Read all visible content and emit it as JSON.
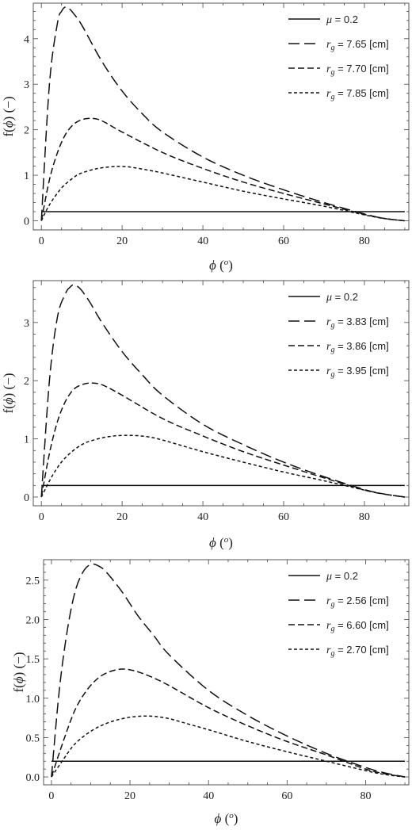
{
  "chart_data": [
    {
      "type": "line",
      "xlabel": {
        "symbol": "ϕ",
        "unit": "o"
      },
      "ylabel": {
        "prefix": "f(",
        "symbol": "ϕ",
        "suffix": ") (−)"
      },
      "xlim": [
        -2,
        91
      ],
      "ylim": [
        -0.2,
        4.78
      ],
      "x_ticks": [
        0,
        20,
        40,
        60,
        80
      ],
      "y_ticks": [
        0,
        1,
        2,
        3,
        4
      ],
      "y_tick_labels": [
        "0",
        "1",
        "2",
        "3",
        "4"
      ],
      "legend_position": "top-right",
      "series": [
        {
          "name": "μ = 0.2",
          "legend_symbol": "μ",
          "legend_rest": " = 0.2",
          "style": "solid",
          "x": [
            0,
            90
          ],
          "y": [
            0.2,
            0.2
          ]
        },
        {
          "name": "r_g = 7.65 [cm]",
          "legend_symbol": "r",
          "legend_sub": "g",
          "legend_rest": " = 7.65 [cm]",
          "style": "long-dash",
          "x": [
            0,
            2,
            4,
            5,
            6,
            7,
            8,
            10,
            15,
            20,
            25,
            30,
            40,
            50,
            60,
            70,
            80,
            85,
            90
          ],
          "y": [
            0,
            3.0,
            4.35,
            4.6,
            4.7,
            4.65,
            4.55,
            4.3,
            3.5,
            2.85,
            2.35,
            1.95,
            1.4,
            1.0,
            0.68,
            0.4,
            0.15,
            0.05,
            0
          ]
        },
        {
          "name": "r_g = 7.70 [cm]",
          "legend_symbol": "r",
          "legend_sub": "g",
          "legend_rest": " = 7.70 [cm]",
          "style": "dash",
          "x": [
            0,
            2,
            4,
            6,
            8,
            10,
            12,
            14,
            16,
            20,
            30,
            40,
            50,
            60,
            70,
            80,
            85,
            90
          ],
          "y": [
            0,
            0.9,
            1.5,
            1.9,
            2.12,
            2.22,
            2.25,
            2.23,
            2.15,
            1.95,
            1.5,
            1.15,
            0.85,
            0.6,
            0.37,
            0.14,
            0.05,
            0
          ]
        },
        {
          "name": "r_g = 7.85 [cm]",
          "legend_symbol": "r",
          "legend_sub": "g",
          "legend_rest": " = 7.85 [cm]",
          "style": "short-dash",
          "x": [
            0,
            2,
            5,
            8,
            10,
            14,
            18,
            20,
            22,
            26,
            30,
            40,
            50,
            60,
            70,
            80,
            85,
            90
          ],
          "y": [
            0,
            0.35,
            0.72,
            0.95,
            1.05,
            1.15,
            1.19,
            1.19,
            1.18,
            1.12,
            1.05,
            0.85,
            0.65,
            0.48,
            0.32,
            0.13,
            0.05,
            0
          ]
        }
      ]
    },
    {
      "type": "line",
      "xlabel": {
        "symbol": "ϕ",
        "unit": "o"
      },
      "ylabel": {
        "prefix": "f(",
        "symbol": "ϕ",
        "suffix": ") (−)"
      },
      "xlim": [
        -2,
        91
      ],
      "ylim": [
        -0.15,
        3.72
      ],
      "x_ticks": [
        0,
        20,
        40,
        60,
        80
      ],
      "y_ticks": [
        0,
        1,
        2,
        3
      ],
      "y_tick_labels": [
        "0",
        "1",
        "2",
        "3"
      ],
      "legend_position": "top-right",
      "series": [
        {
          "name": "μ = 0.2",
          "legend_symbol": "μ",
          "legend_rest": " = 0.2",
          "style": "solid",
          "x": [
            0,
            90
          ],
          "y": [
            0.2,
            0.2
          ]
        },
        {
          "name": "r_g = 3.83 [cm]",
          "legend_symbol": "r",
          "legend_sub": "g",
          "legend_rest": " = 3.83 [cm]",
          "style": "long-dash",
          "x": [
            0,
            2,
            4,
            6,
            7,
            8,
            9,
            10,
            12,
            15,
            20,
            25,
            30,
            40,
            50,
            60,
            70,
            80,
            85,
            90
          ],
          "y": [
            0,
            2.0,
            3.1,
            3.5,
            3.6,
            3.65,
            3.62,
            3.55,
            3.35,
            3.0,
            2.5,
            2.1,
            1.75,
            1.25,
            0.9,
            0.6,
            0.35,
            0.13,
            0.05,
            0
          ]
        },
        {
          "name": "r_g = 3.86 [cm]",
          "legend_symbol": "r",
          "legend_sub": "g",
          "legend_rest": " = 3.86 [cm]",
          "style": "dash",
          "x": [
            0,
            2,
            4,
            6,
            8,
            10,
            12,
            14,
            16,
            20,
            30,
            40,
            50,
            60,
            70,
            80,
            85,
            90
          ],
          "y": [
            0,
            0.75,
            1.3,
            1.65,
            1.85,
            1.93,
            1.96,
            1.95,
            1.9,
            1.75,
            1.35,
            1.05,
            0.78,
            0.55,
            0.33,
            0.12,
            0.05,
            0
          ]
        },
        {
          "name": "r_g = 3.95 [cm]",
          "legend_symbol": "r",
          "legend_sub": "g",
          "legend_rest": " = 3.95 [cm]",
          "style": "short-dash",
          "x": [
            0,
            3,
            6,
            10,
            14,
            18,
            22,
            26,
            30,
            40,
            50,
            60,
            70,
            80,
            85,
            90
          ],
          "y": [
            0,
            0.4,
            0.68,
            0.9,
            1.0,
            1.05,
            1.06,
            1.04,
            0.98,
            0.78,
            0.6,
            0.43,
            0.28,
            0.12,
            0.05,
            0
          ]
        }
      ]
    },
    {
      "type": "line",
      "xlabel": {
        "symbol": "ϕ",
        "unit": "o"
      },
      "ylabel": {
        "prefix": "f(",
        "symbol": "ϕ",
        "suffix": ") (−)"
      },
      "xlim": [
        -2,
        91
      ],
      "ylim": [
        -0.1,
        2.76
      ],
      "x_ticks": [
        0,
        20,
        40,
        60,
        80
      ],
      "y_ticks": [
        0,
        0.5,
        1,
        1.5,
        2,
        2.5
      ],
      "y_tick_labels": [
        "0.0",
        "0.5",
        "1.0",
        "1.5",
        "2.0",
        "2.5"
      ],
      "legend_position": "top-right",
      "series": [
        {
          "name": "μ = 0.2",
          "legend_symbol": "μ",
          "legend_rest": " = 0.2",
          "style": "solid",
          "x": [
            0,
            90
          ],
          "y": [
            0.2,
            0.2
          ]
        },
        {
          "name": "r_g = 2.56 [cm]",
          "legend_symbol": "r",
          "legend_sub": "g",
          "legend_rest": " = 2.56 [cm]",
          "style": "long-dash",
          "x": [
            0,
            2,
            4,
            6,
            8,
            10,
            12,
            14,
            18,
            22,
            26,
            30,
            40,
            50,
            60,
            70,
            80,
            85,
            90
          ],
          "y": [
            0,
            1.1,
            1.85,
            2.35,
            2.6,
            2.7,
            2.68,
            2.6,
            2.35,
            2.05,
            1.8,
            1.55,
            1.1,
            0.78,
            0.52,
            0.3,
            0.12,
            0.05,
            0
          ]
        },
        {
          "name": "r_g = 6.60 [cm]",
          "legend_symbol": "r",
          "legend_sub": "g",
          "legend_rest": " = 6.60 [cm]",
          "style": "dash",
          "x": [
            0,
            3,
            6,
            9,
            12,
            15,
            18,
            21,
            25,
            30,
            40,
            50,
            60,
            70,
            80,
            85,
            90
          ],
          "y": [
            0,
            0.45,
            0.85,
            1.1,
            1.26,
            1.34,
            1.37,
            1.35,
            1.28,
            1.16,
            0.88,
            0.65,
            0.45,
            0.28,
            0.1,
            0.04,
            0
          ]
        },
        {
          "name": "r_g = 2.70 [cm]",
          "legend_symbol": "r",
          "legend_sub": "g",
          "legend_rest": " = 2.70 [cm]",
          "style": "short-dash",
          "x": [
            0,
            3,
            6,
            10,
            14,
            18,
            22,
            26,
            30,
            35,
            40,
            50,
            60,
            70,
            80,
            85,
            90
          ],
          "y": [
            0,
            0.22,
            0.42,
            0.58,
            0.68,
            0.74,
            0.77,
            0.77,
            0.74,
            0.67,
            0.6,
            0.45,
            0.32,
            0.2,
            0.08,
            0.03,
            0
          ]
        }
      ]
    }
  ]
}
